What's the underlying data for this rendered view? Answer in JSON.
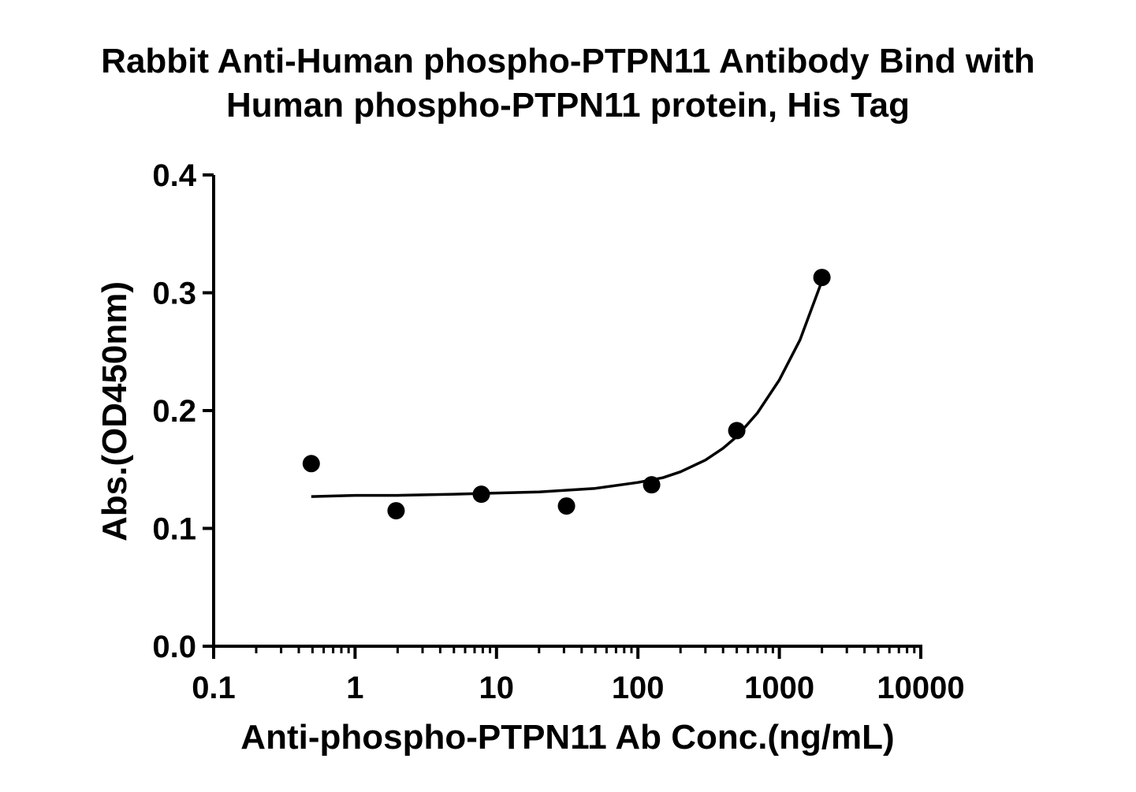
{
  "chart_data": {
    "type": "scatter",
    "title_lines": [
      "Rabbit Anti-Human phospho-PTPN11 Antibody Bind with",
      "Human phospho-PTPN11 protein, His Tag"
    ],
    "xlabel": "Anti-phospho-PTPN11 Ab Conc.(ng/mL)",
    "ylabel": "Abs.(OD450nm)",
    "x_scale": "log",
    "xlim": [
      0.1,
      10000
    ],
    "ylim": [
      0.0,
      0.4
    ],
    "x_ticks": [
      "0.1",
      "1",
      "10",
      "100",
      "1000",
      "10000"
    ],
    "y_ticks": [
      "0.0",
      "0.1",
      "0.2",
      "0.3",
      "0.4"
    ],
    "grid": false,
    "points": {
      "x": [
        0.49,
        1.95,
        7.81,
        31.25,
        125,
        500,
        2000
      ],
      "y": [
        0.155,
        0.115,
        0.129,
        0.119,
        0.137,
        0.183,
        0.313
      ]
    },
    "fit_curve": {
      "type": "4PL",
      "x": [
        0.49,
        1,
        2,
        5,
        10,
        20,
        50,
        100,
        150,
        200,
        300,
        400,
        500,
        700,
        1000,
        1400,
        2000
      ],
      "y": [
        0.127,
        0.128,
        0.128,
        0.129,
        0.13,
        0.131,
        0.134,
        0.139,
        0.143,
        0.148,
        0.158,
        0.168,
        0.178,
        0.198,
        0.226,
        0.26,
        0.31
      ]
    }
  }
}
